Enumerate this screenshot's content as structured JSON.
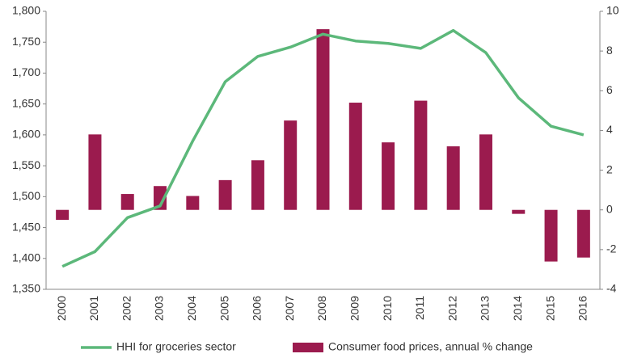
{
  "chart_data": {
    "type": "bar_line",
    "categories": [
      "2000",
      "2001",
      "2002",
      "2003",
      "2004",
      "2005",
      "2006",
      "2007",
      "2008",
      "2009",
      "2010",
      "2011",
      "2012",
      "2013",
      "2014",
      "2015",
      "2016"
    ],
    "series": [
      {
        "name": "HHI for groceries sector",
        "type": "line",
        "axis": "y",
        "color": "#5cb87a",
        "values": [
          1387,
          1411,
          1466,
          1485,
          1590,
          1686,
          1727,
          1742,
          1763,
          1752,
          1748,
          1740,
          1769,
          1733,
          1660,
          1614,
          1600
        ]
      },
      {
        "name": "Consumer food prices, annual % change",
        "type": "bar",
        "axis": "y2",
        "color": "#9b1b4e",
        "values": [
          -0.5,
          3.8,
          0.8,
          1.2,
          0.7,
          1.5,
          2.5,
          4.5,
          9.1,
          5.4,
          3.4,
          5.5,
          3.2,
          3.8,
          -0.2,
          -2.6,
          -2.4
        ]
      }
    ],
    "ylim": [
      1350,
      1800
    ],
    "yticks": [
      {
        "value": 1350,
        "label": "1,350"
      },
      {
        "value": 1400,
        "label": "1,400"
      },
      {
        "value": 1450,
        "label": "1,450"
      },
      {
        "value": 1500,
        "label": "1,500"
      },
      {
        "value": 1550,
        "label": "1,550"
      },
      {
        "value": 1600,
        "label": "1,600"
      },
      {
        "value": 1650,
        "label": "1,650"
      },
      {
        "value": 1700,
        "label": "1,700"
      },
      {
        "value": 1750,
        "label": "1,750"
      },
      {
        "value": 1800,
        "label": "1,800"
      }
    ],
    "y2lim": [
      -4,
      10
    ],
    "y2ticks": [
      -4,
      -2,
      0,
      2,
      4,
      6,
      8,
      10
    ],
    "grid": false,
    "legend": "bottom"
  }
}
